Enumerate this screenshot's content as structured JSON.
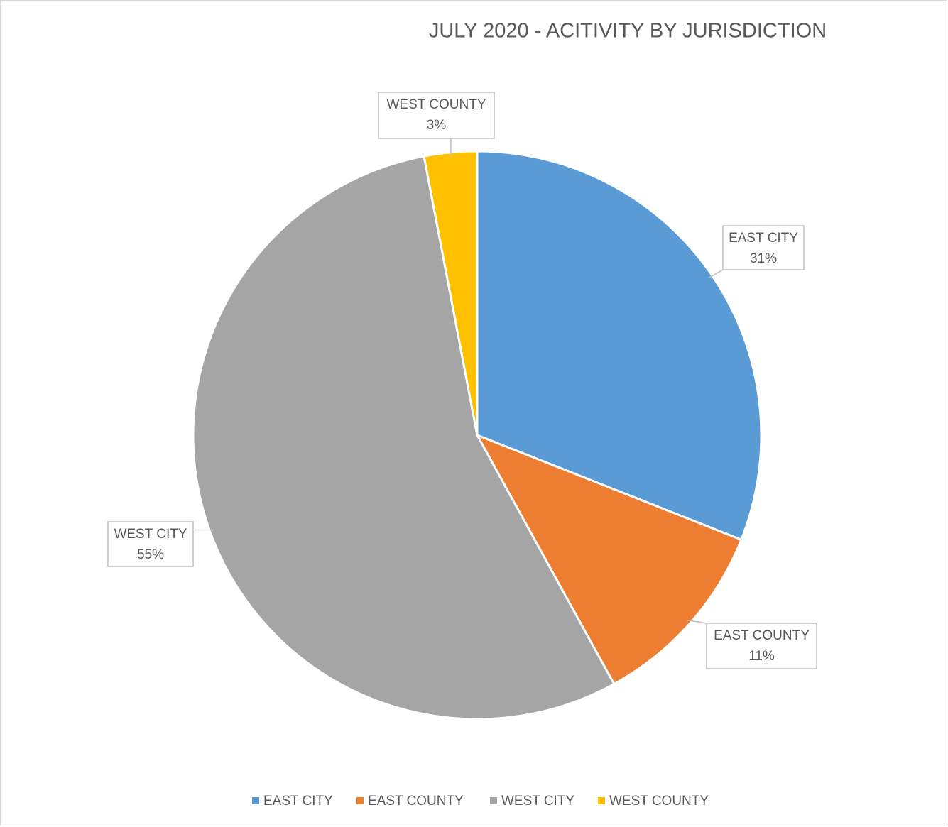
{
  "chart_data": {
    "type": "pie",
    "title": "JULY 2020 - ACITIVITY BY JURISDICTION",
    "categories": [
      "EAST CITY",
      "EAST COUNTY",
      "WEST CITY",
      "WEST COUNTY"
    ],
    "values": [
      31,
      11,
      55,
      3
    ],
    "value_labels": [
      "31%",
      "11%",
      "55%",
      "3%"
    ],
    "colors": [
      "#5b9bd5",
      "#ed7d31",
      "#a5a5a5",
      "#ffc000"
    ],
    "legend": "bottom"
  }
}
